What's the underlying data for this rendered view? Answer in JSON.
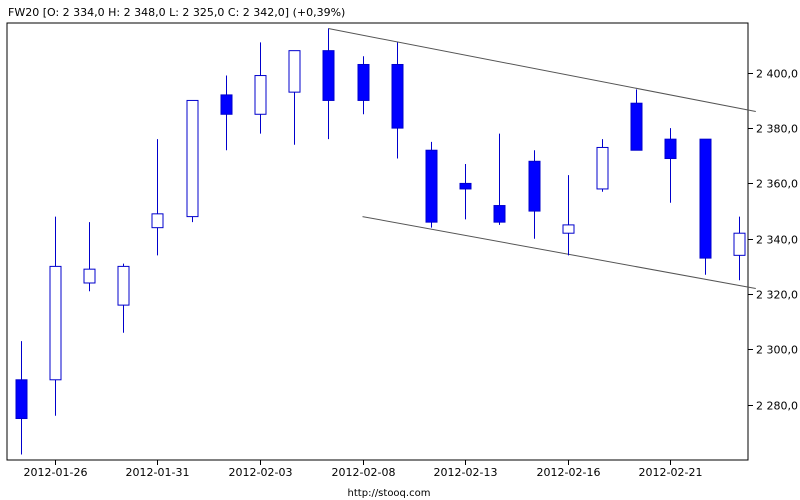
{
  "header": {
    "text": "FW20 [O: 2 334,0  H: 2 348,0  L: 2 325,0  C: 2 342,0] (+0,39%)"
  },
  "source": "http://stooq.com",
  "colors": {
    "bearish_fill": "#0000ff",
    "bullish_fill": "#ffffff",
    "candle_stroke": "#0000cc",
    "trendline": "#555555",
    "frame": "#000000",
    "grid": "#d8d8d8"
  },
  "chart_data": {
    "type": "candlestick",
    "symbol": "FW20",
    "ylim": [
      2260,
      2418
    ],
    "y_ticks": [
      {
        "value": 2280,
        "label": "2 280,0"
      },
      {
        "value": 2300,
        "label": "2 300,0"
      },
      {
        "value": 2320,
        "label": "2 320,0"
      },
      {
        "value": 2340,
        "label": "2 340,0"
      },
      {
        "value": 2360,
        "label": "2 360,0"
      },
      {
        "value": 2380,
        "label": "2 380,0"
      },
      {
        "value": 2400,
        "label": "2 400,0"
      }
    ],
    "x_ticks": [
      {
        "index": 1,
        "label": "2012-01-26"
      },
      {
        "index": 4,
        "label": "2012-01-31"
      },
      {
        "index": 7,
        "label": "2012-02-03"
      },
      {
        "index": 10,
        "label": "2012-02-08"
      },
      {
        "index": 13,
        "label": "2012-02-13"
      },
      {
        "index": 16,
        "label": "2012-02-16"
      },
      {
        "index": 19,
        "label": "2012-02-21"
      }
    ],
    "candles": [
      {
        "open": 2289,
        "high": 2303,
        "low": 2262,
        "close": 2275
      },
      {
        "open": 2289,
        "high": 2348,
        "low": 2276,
        "close": 2330
      },
      {
        "open": 2324,
        "high": 2346,
        "low": 2321,
        "close": 2329
      },
      {
        "open": 2316,
        "high": 2331,
        "low": 2306,
        "close": 2330
      },
      {
        "open": 2344,
        "high": 2376,
        "low": 2334,
        "close": 2349
      },
      {
        "open": 2348,
        "high": 2390,
        "low": 2346,
        "close": 2390
      },
      {
        "open": 2392,
        "high": 2399,
        "low": 2372,
        "close": 2385
      },
      {
        "open": 2385,
        "high": 2411,
        "low": 2378,
        "close": 2399
      },
      {
        "open": 2393,
        "high": 2408,
        "low": 2374,
        "close": 2408
      },
      {
        "open": 2408,
        "high": 2416,
        "low": 2376,
        "close": 2390
      },
      {
        "open": 2403,
        "high": 2406,
        "low": 2385,
        "close": 2390
      },
      {
        "open": 2403,
        "high": 2411,
        "low": 2369,
        "close": 2380
      },
      {
        "open": 2372,
        "high": 2375,
        "low": 2344,
        "close": 2346
      },
      {
        "open": 2360,
        "high": 2367,
        "low": 2347,
        "close": 2358
      },
      {
        "open": 2352,
        "high": 2378,
        "low": 2345,
        "close": 2346
      },
      {
        "open": 2368,
        "high": 2372,
        "low": 2340,
        "close": 2350
      },
      {
        "open": 2342,
        "high": 2363,
        "low": 2334,
        "close": 2345
      },
      {
        "open": 2358,
        "high": 2376,
        "low": 2357,
        "close": 2373
      },
      {
        "open": 2389,
        "high": 2394,
        "low": 2372,
        "close": 2372
      },
      {
        "open": 2376,
        "high": 2380,
        "low": 2353,
        "close": 2369
      },
      {
        "open": 2376,
        "high": 2376,
        "low": 2327,
        "close": 2333
      },
      {
        "open": 2334,
        "high": 2348,
        "low": 2325,
        "close": 2342
      }
    ],
    "trendlines": [
      {
        "from": {
          "index": 9,
          "value": 2416
        },
        "to": {
          "index": 21.5,
          "value": 2386
        }
      },
      {
        "from": {
          "index": 10,
          "value": 2348
        },
        "to": {
          "index": 21.5,
          "value": 2322
        }
      }
    ],
    "grid": false
  }
}
